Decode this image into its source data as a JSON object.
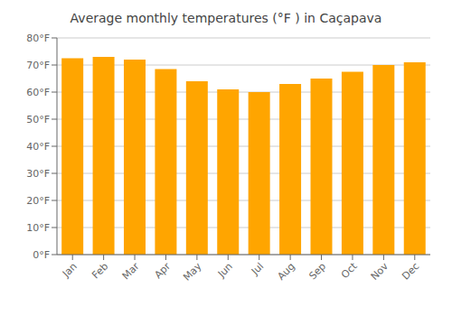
{
  "chart_data": {
    "type": "bar",
    "title": "Average monthly temperatures (°F ) in Caçapava",
    "categories": [
      "Jan",
      "Feb",
      "Mar",
      "Apr",
      "May",
      "Jun",
      "Jul",
      "Aug",
      "Sep",
      "Oct",
      "Nov",
      "Dec"
    ],
    "values": [
      72.5,
      73.0,
      72.0,
      68.5,
      64.0,
      61.0,
      60.0,
      63.0,
      65.0,
      67.5,
      70.0,
      71.0
    ],
    "color": "#FFA500",
    "ylim": [
      0,
      80
    ],
    "yticks": [
      {
        "value": 0,
        "label": "0°F"
      },
      {
        "value": 10,
        "label": "10°F"
      },
      {
        "value": 20,
        "label": "20°F"
      },
      {
        "value": 30,
        "label": "30°F"
      },
      {
        "value": 40,
        "label": "40°F"
      },
      {
        "value": 50,
        "label": "50°F"
      },
      {
        "value": 60,
        "label": "60°F"
      },
      {
        "value": 70,
        "label": "70°F"
      },
      {
        "value": 80,
        "label": "80°F"
      }
    ],
    "grid": true
  }
}
